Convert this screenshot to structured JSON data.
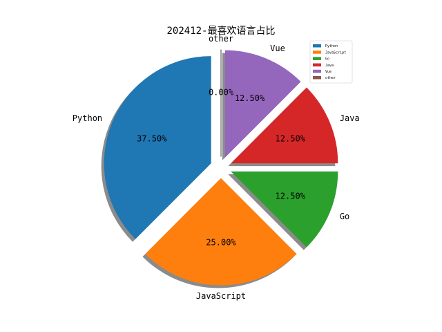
{
  "chart_data": {
    "type": "pie",
    "title": "202412-最喜欢语言占比",
    "legend_position": "top-right",
    "shadow": true,
    "slices": [
      {
        "label": "Python",
        "value": 37.5,
        "pct_label": "37.50%",
        "color": "#1f77b4"
      },
      {
        "label": "JavaScript",
        "value": 25.0,
        "pct_label": "25.00%",
        "color": "#ff7f0e"
      },
      {
        "label": "Go",
        "value": 12.5,
        "pct_label": "12.50%",
        "color": "#2ca02c"
      },
      {
        "label": "Java",
        "value": 12.5,
        "pct_label": "12.50%",
        "color": "#d62728"
      },
      {
        "label": "Vue",
        "value": 12.5,
        "pct_label": "12.50%",
        "color": "#9467bd"
      },
      {
        "label": "other",
        "value": 0.0,
        "pct_label": "0.00%",
        "color": "#8c564b"
      }
    ]
  }
}
